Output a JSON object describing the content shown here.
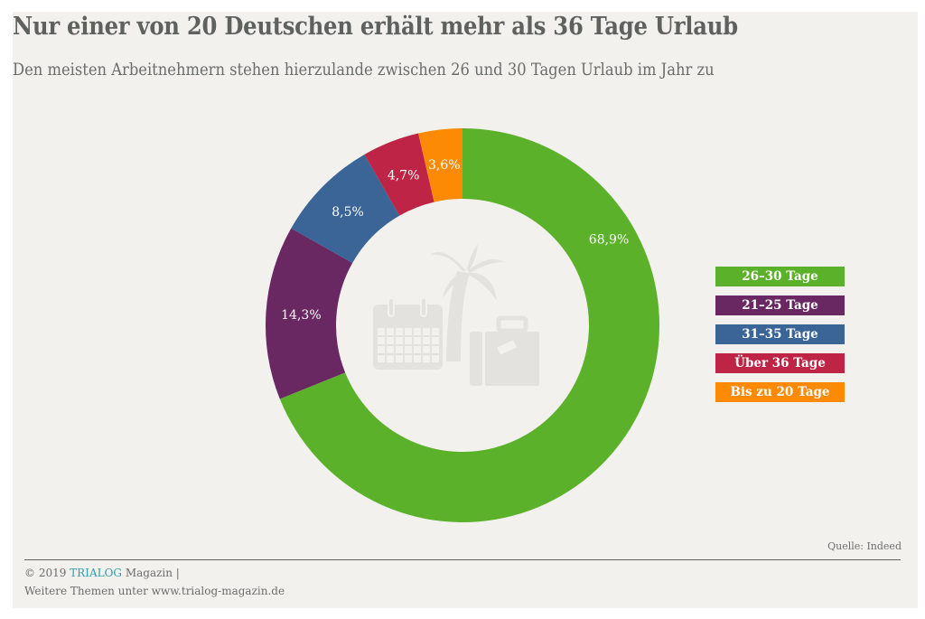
{
  "header": {
    "title": "Nur einer von 20 Deutschen erhält mehr als 36 Tage Urlaub",
    "subtitle": "Den meisten Arbeitnehmern stehen hierzulande zwischen 26 und 30 Tagen Urlaub im Jahr zu"
  },
  "chart_data": {
    "type": "pie",
    "variant": "donut",
    "title": "Nur einer von 20 Deutschen erhält mehr als 36 Tage Urlaub",
    "subtitle": "Den meisten Arbeitnehmern stehen hierzulande zwischen 26 und 30 Tagen Urlaub im Jahr zu",
    "legend_position": "right",
    "center_icons": [
      "calendar-icon",
      "palm-tree-icon",
      "suitcase-icon"
    ],
    "slices": [
      {
        "label": "26–30 Tage",
        "value": 68.9,
        "display": "68,9%",
        "color": "#5bb12a"
      },
      {
        "label": "21–25 Tage",
        "value": 14.3,
        "display": "14,3%",
        "color": "#6a2863"
      },
      {
        "label": "31–35 Tage",
        "value": 8.5,
        "display": "8,5%",
        "color": "#3a6596"
      },
      {
        "label": "Über 36 Tage",
        "value": 4.7,
        "display": "4,7%",
        "color": "#be2446"
      },
      {
        "label": "Bis zu 20 Tage",
        "value": 3.6,
        "display": "3,6%",
        "color": "#fc8a05"
      }
    ],
    "legend_order": [
      "26–30 Tage",
      "21–25 Tage",
      "31–35 Tage",
      "Über 36 Tage",
      "Bis zu 20 Tage"
    ]
  },
  "footer": {
    "source": "Quelle: Indeed",
    "copyright_prefix": "© 2019 ",
    "brand": "TRIALOG",
    "copyright_suffix": " Magazin |",
    "more_topics": "Weitere Themen unter www.trialog-magazin.de"
  }
}
